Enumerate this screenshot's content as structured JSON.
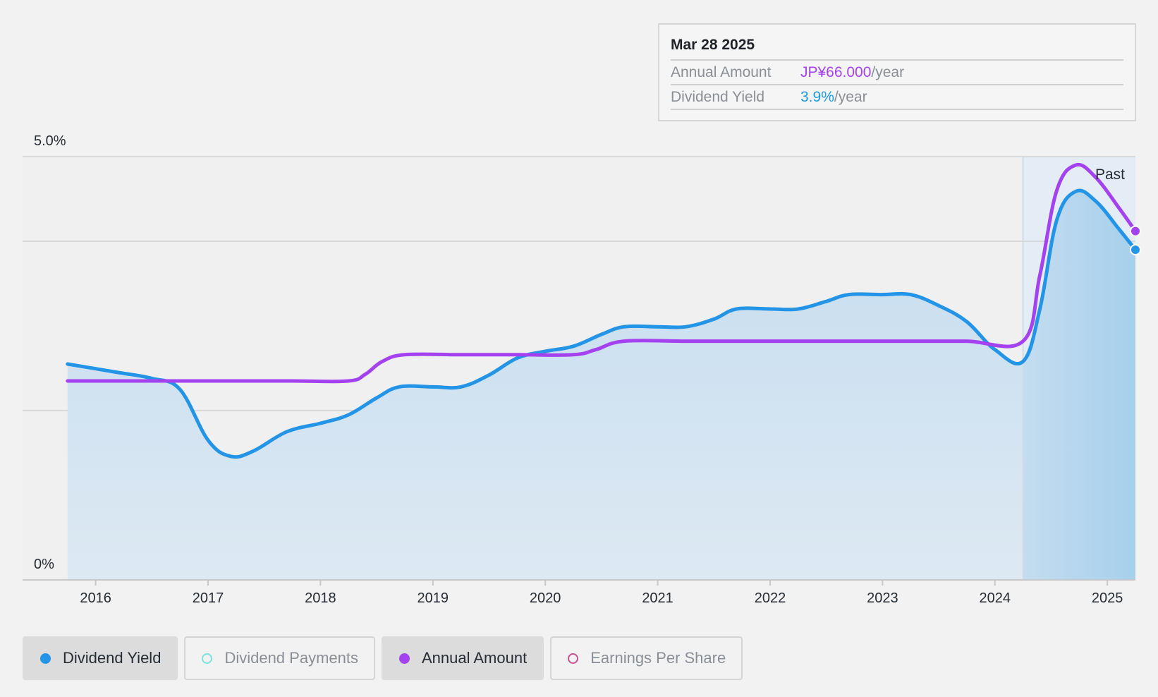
{
  "tooltip": {
    "date": "Mar 28 2025",
    "rows": [
      {
        "label": "Annual Amount",
        "value": "JP¥66.000",
        "unit": "/year",
        "color": "#a442f0"
      },
      {
        "label": "Dividend Yield",
        "value": "3.9%",
        "unit": "/year",
        "color": "#1d9be0"
      }
    ]
  },
  "legend": [
    {
      "label": "Dividend Yield",
      "active": true,
      "filled": true,
      "color": "#2394e6"
    },
    {
      "label": "Dividend Payments",
      "active": false,
      "filled": false,
      "color": "#7ee2db"
    },
    {
      "label": "Annual Amount",
      "active": true,
      "filled": true,
      "color": "#a442f0"
    },
    {
      "label": "Earnings Per Share",
      "active": false,
      "filled": false,
      "color": "#c9528f"
    }
  ],
  "chart_data": {
    "type": "line",
    "y_axis": {
      "min": 0,
      "max": 5,
      "tick_labels": [
        "0%",
        "5.0%"
      ]
    },
    "x_axis": {
      "min": 2015.35,
      "max": 2025.25,
      "ticks": [
        2016,
        2017,
        2018,
        2019,
        2020,
        2021,
        2022,
        2023,
        2024,
        2025
      ]
    },
    "past_region": {
      "from": 2024.25,
      "to": 2025.25,
      "label": "Past"
    },
    "series": [
      {
        "key": "yield",
        "color": "#2394e6",
        "area": true,
        "points": [
          [
            2015.75,
            2.55
          ],
          [
            2016.2,
            2.45
          ],
          [
            2016.5,
            2.38
          ],
          [
            2016.75,
            2.25
          ],
          [
            2017.0,
            1.65
          ],
          [
            2017.2,
            1.46
          ],
          [
            2017.4,
            1.52
          ],
          [
            2017.7,
            1.75
          ],
          [
            2018.0,
            1.85
          ],
          [
            2018.25,
            1.95
          ],
          [
            2018.5,
            2.15
          ],
          [
            2018.7,
            2.28
          ],
          [
            2019.0,
            2.28
          ],
          [
            2019.25,
            2.28
          ],
          [
            2019.5,
            2.42
          ],
          [
            2019.75,
            2.62
          ],
          [
            2020.0,
            2.7
          ],
          [
            2020.25,
            2.76
          ],
          [
            2020.5,
            2.9
          ],
          [
            2020.7,
            2.99
          ],
          [
            2021.0,
            2.99
          ],
          [
            2021.25,
            2.99
          ],
          [
            2021.5,
            3.08
          ],
          [
            2021.7,
            3.2
          ],
          [
            2022.0,
            3.2
          ],
          [
            2022.25,
            3.2
          ],
          [
            2022.5,
            3.29
          ],
          [
            2022.7,
            3.37
          ],
          [
            2023.0,
            3.37
          ],
          [
            2023.25,
            3.37
          ],
          [
            2023.5,
            3.24
          ],
          [
            2023.75,
            3.05
          ],
          [
            2024.0,
            2.72
          ],
          [
            2024.25,
            2.58
          ],
          [
            2024.4,
            3.2
          ],
          [
            2024.55,
            4.25
          ],
          [
            2024.72,
            4.59
          ],
          [
            2024.9,
            4.47
          ],
          [
            2025.1,
            4.15
          ],
          [
            2025.25,
            3.9
          ]
        ]
      },
      {
        "key": "amount",
        "color": "#a442f0",
        "area": false,
        "points": [
          [
            2015.75,
            2.35
          ],
          [
            2016.25,
            2.35
          ],
          [
            2016.75,
            2.35
          ],
          [
            2017.25,
            2.35
          ],
          [
            2017.75,
            2.35
          ],
          [
            2018.25,
            2.35
          ],
          [
            2018.4,
            2.43
          ],
          [
            2018.55,
            2.58
          ],
          [
            2018.75,
            2.66
          ],
          [
            2019.25,
            2.66
          ],
          [
            2019.75,
            2.66
          ],
          [
            2020.25,
            2.66
          ],
          [
            2020.45,
            2.72
          ],
          [
            2020.7,
            2.82
          ],
          [
            2021.25,
            2.82
          ],
          [
            2021.75,
            2.82
          ],
          [
            2022.25,
            2.82
          ],
          [
            2022.75,
            2.82
          ],
          [
            2023.25,
            2.82
          ],
          [
            2023.75,
            2.82
          ],
          [
            2024.25,
            2.82
          ],
          [
            2024.4,
            3.6
          ],
          [
            2024.55,
            4.6
          ],
          [
            2024.72,
            4.9
          ],
          [
            2024.9,
            4.75
          ],
          [
            2025.1,
            4.4
          ],
          [
            2025.25,
            4.12
          ]
        ]
      }
    ]
  }
}
